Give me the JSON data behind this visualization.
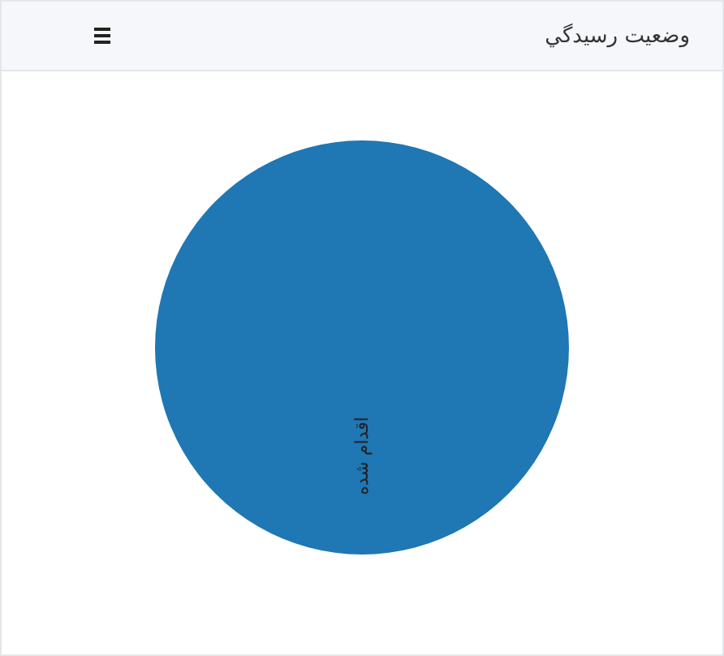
{
  "chart_data": {
    "type": "pie",
    "title": "وضعيت رسيدگي",
    "categories": [
      "اقدام شده"
    ],
    "values": [
      100
    ],
    "colors": [
      "#1f77b4"
    ],
    "legend": false
  }
}
